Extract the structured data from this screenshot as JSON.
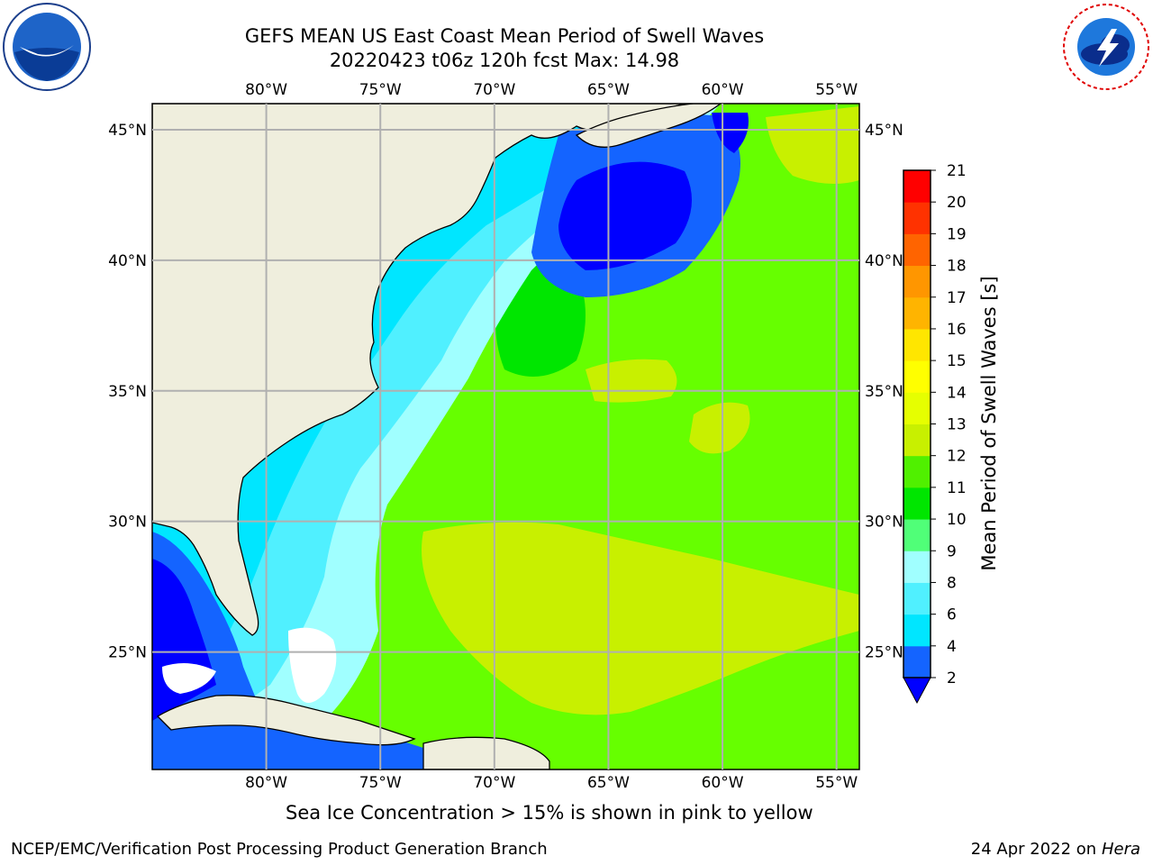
{
  "header": {
    "title_line1": "GEFS MEAN US East Coast Mean Period of Swell Waves",
    "title_line2": "20220423 t06z 120h fcst   Max: 14.98"
  },
  "logos": {
    "left": "noaa-logo",
    "right": "nws-logo"
  },
  "map": {
    "lon_ticks": [
      "80°W",
      "75°W",
      "70°W",
      "65°W",
      "60°W",
      "55°W"
    ],
    "lat_ticks": [
      "45°N",
      "40°N",
      "35°N",
      "30°N",
      "25°N"
    ],
    "lon_range": [
      -85,
      -54
    ],
    "lat_range": [
      20.5,
      46
    ],
    "land_color": "#efeedd",
    "grid_color": "#b0b0b0"
  },
  "colorbar": {
    "label": "Mean Period of Swell Waves [s]",
    "ticks": [
      "2",
      "4",
      "6",
      "8",
      "9",
      "10",
      "11",
      "12",
      "13",
      "14",
      "15",
      "16",
      "17",
      "18",
      "19",
      "20",
      "21"
    ],
    "colors": [
      "#1464ff",
      "#00e6ff",
      "#50f0ff",
      "#a0ffff",
      "#50ff78",
      "#00e600",
      "#50f000",
      "#c8f000",
      "#e6ff00",
      "#ffff00",
      "#ffe600",
      "#ffb400",
      "#ff9600",
      "#ff6400",
      "#ff3200",
      "#ff0000"
    ],
    "under_color": "#0000ff"
  },
  "caption": "Sea Ice Concentration > 15% is shown in pink to yellow",
  "footer": {
    "left": "NCEP/EMC/Verification Post Processing Product Generation Branch",
    "date": "24 Apr 2022 on",
    "machine": "Hera"
  }
}
